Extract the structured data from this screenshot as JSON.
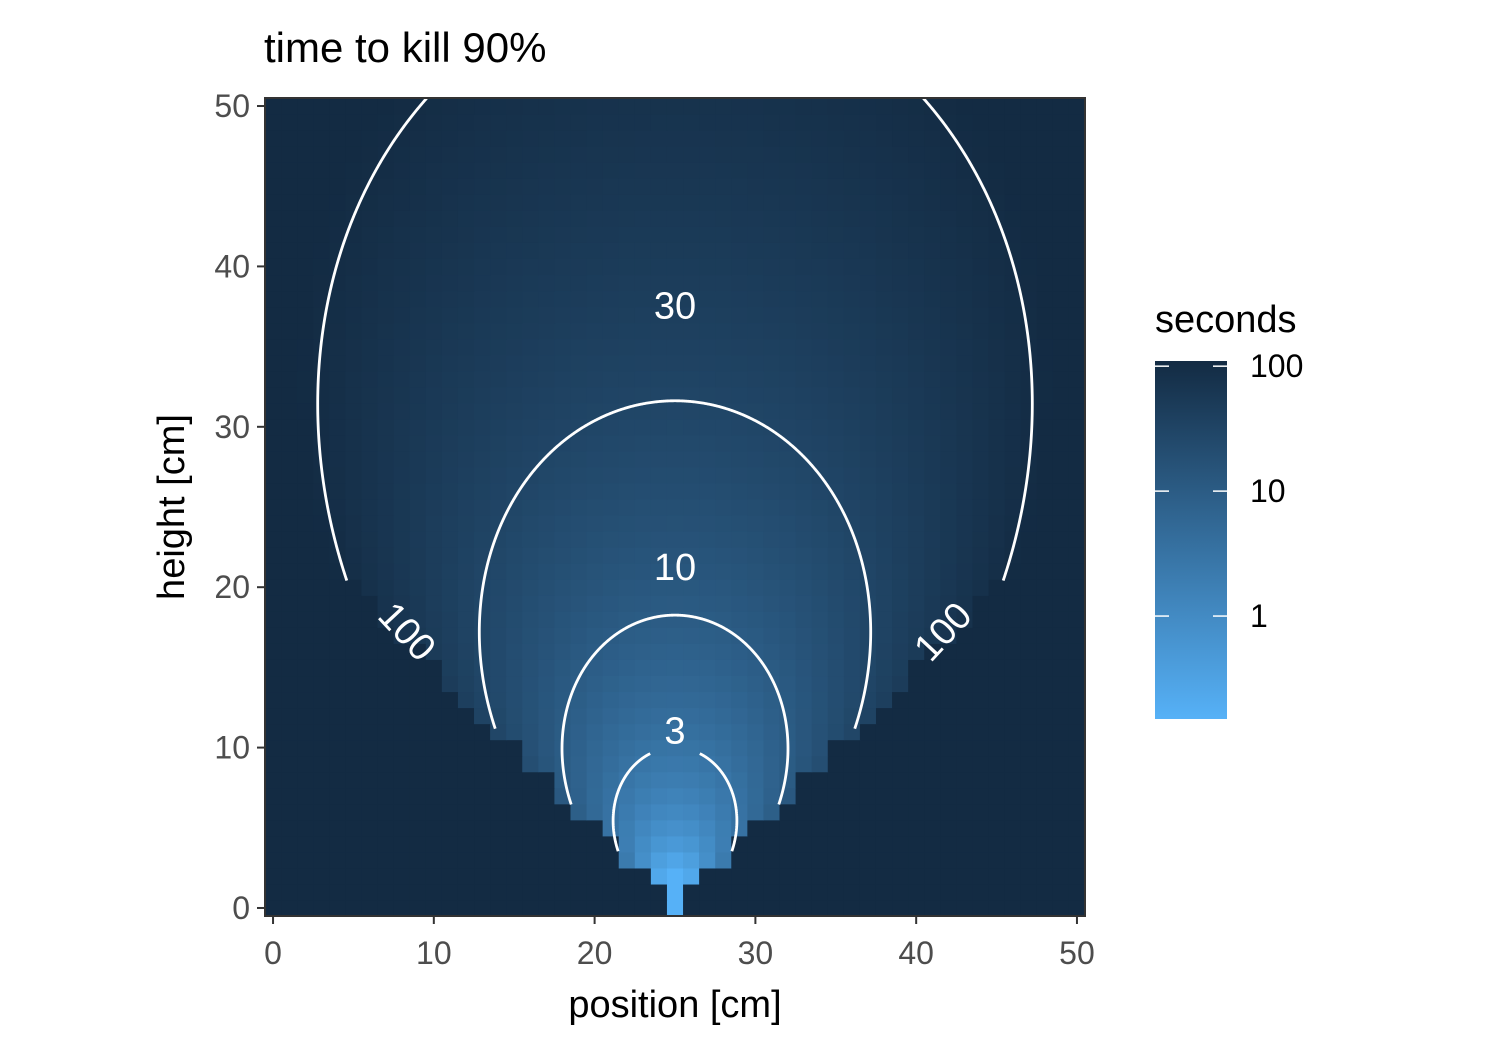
{
  "chart_data": {
    "type": "heatmap",
    "title": "time to kill 90%",
    "xlabel": "position [cm]",
    "ylabel": "height [cm]",
    "x_ticks": [
      0,
      10,
      20,
      30,
      40,
      50
    ],
    "y_ticks": [
      0,
      10,
      20,
      30,
      40,
      50
    ],
    "xlim": [
      -0.5,
      50.5
    ],
    "ylim": [
      -0.5,
      50.5
    ],
    "grid": false,
    "source": {
      "position": 25,
      "height": 0
    },
    "cone_half_angle_deg": 45,
    "legend": {
      "title": "seconds",
      "scale": "log10",
      "breaks": [
        100,
        10,
        1
      ],
      "break_labels": [
        "100",
        "10",
        "1"
      ],
      "range": [
        0.15,
        110
      ],
      "placement": "right"
    },
    "colors": {
      "low": "#56B1F7",
      "high": "#132B43",
      "contour": "#ffffff"
    },
    "contours": [
      {
        "level": 3,
        "label": "3",
        "label_at": {
          "position": 25,
          "height": 11
        }
      },
      {
        "level": 10,
        "label": "10",
        "label_at": {
          "position": 25,
          "height": 21.2
        }
      },
      {
        "level": 30,
        "label": "30",
        "label_at": {
          "position": 25,
          "height": 37.5
        }
      },
      {
        "level": 100,
        "label": "100",
        "label_at": [
          {
            "position": 8.3,
            "height": 17.2
          },
          {
            "position": 41.7,
            "height": 17.2
          }
        ]
      }
    ]
  }
}
